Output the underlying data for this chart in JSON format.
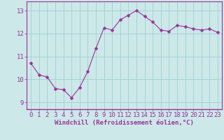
{
  "x": [
    0,
    1,
    2,
    3,
    4,
    5,
    6,
    7,
    8,
    9,
    10,
    11,
    12,
    13,
    14,
    15,
    16,
    17,
    18,
    19,
    20,
    21,
    22,
    23
  ],
  "y": [
    10.7,
    10.2,
    10.1,
    9.6,
    9.55,
    9.2,
    9.65,
    10.35,
    11.35,
    12.25,
    12.15,
    12.6,
    12.8,
    13.0,
    12.75,
    12.5,
    12.15,
    12.1,
    12.35,
    12.3,
    12.2,
    12.15,
    12.2,
    12.05
  ],
  "line_color": "#993399",
  "marker_color": "#993399",
  "bg_color": "#cce8e8",
  "grid_color": "#99cccc",
  "xlabel": "Windchill (Refroidissement éolien,°C)",
  "ylim": [
    8.7,
    13.4
  ],
  "xlim": [
    -0.5,
    23.5
  ],
  "yticks": [
    9,
    10,
    11,
    12,
    13
  ],
  "xticks": [
    0,
    1,
    2,
    3,
    4,
    5,
    6,
    7,
    8,
    9,
    10,
    11,
    12,
    13,
    14,
    15,
    16,
    17,
    18,
    19,
    20,
    21,
    22,
    23
  ],
  "tick_color": "#993399",
  "label_color": "#993399",
  "font_size_xlabel": 6.5,
  "font_size_tick": 6.5,
  "spine_color": "#993399",
  "line_width": 0.8,
  "marker_size": 2.5
}
